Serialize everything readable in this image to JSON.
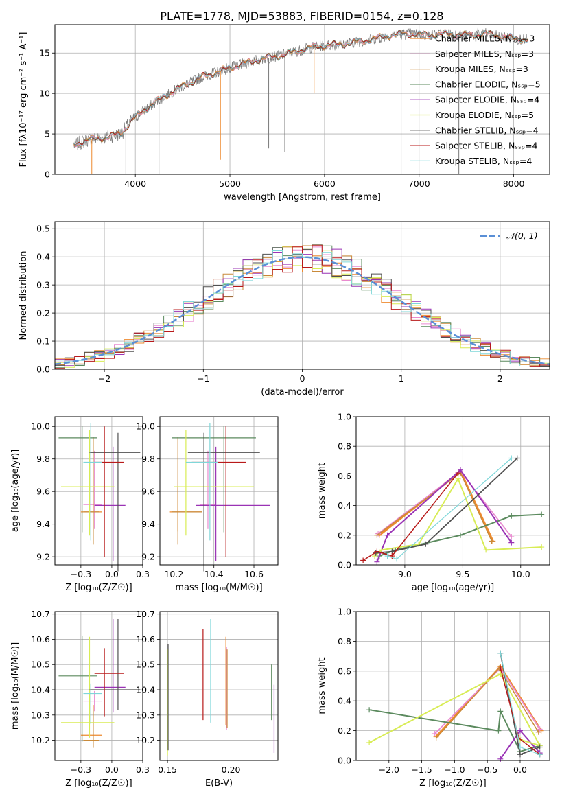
{
  "figure_title": "PLATE=1778, MJD=53883, FIBERID=0154, z=0.128",
  "colors": {
    "chabrier_miles": "#ee8a2e",
    "salpeter_miles": "#e98bd0",
    "kroupa_miles": "#c98a3a",
    "chabrier_elodie": "#5b8a5e",
    "salpeter_elodie": "#9a33b5",
    "kroupa_elodie": "#d8ec55",
    "chabrier_stelib": "#505050",
    "salpeter_stelib": "#b81a1a",
    "kroupa_stelib": "#7fd7d9",
    "normal_curve": "#5a8fd6",
    "grid": "#b0b0b0",
    "spectrum_gray": "#7a7a7a"
  },
  "chart_data": [
    {
      "id": "spectrum",
      "type": "line",
      "title": "PLATE=1778, MJD=53883, FIBERID=0154, z=0.128",
      "xlabel": "wavelength [Angstrom, rest frame]",
      "ylabel": "Flux [fλ10⁻¹⁷ erg cm⁻² s⁻¹ A⁻¹]",
      "xlim": [
        3150,
        8380
      ],
      "ylim": [
        0,
        18.5
      ],
      "xticks": [
        4000,
        5000,
        6000,
        7000,
        8000
      ],
      "yticks": [
        0,
        5,
        10,
        15
      ],
      "legend_position": "right",
      "legend": [
        "Chabrier MILES, Nₛₛₚ=3",
        "Salpeter MILES, Nₛₛₚ=3",
        "Kroupa MILES, Nₛₛₚ=3",
        "Chabrier ELODIE, Nₛₛₚ=5",
        "Salpeter ELODIE, Nₛₛₚ=4",
        "Kroupa ELODIE, Nₛₛₚ=5",
        "Chabrier STELIB, Nₛₛₚ=4",
        "Salpeter STELIB, Nₛₛₚ=4",
        "Kroupa STELIB, Nₛₛₚ=4"
      ],
      "continuum": [
        [
          3350,
          3.6
        ],
        [
          3500,
          4.3
        ],
        [
          3700,
          4.6
        ],
        [
          3850,
          5.0
        ],
        [
          3950,
          6.5
        ],
        [
          4100,
          8.0
        ],
        [
          4300,
          9.6
        ],
        [
          4500,
          10.9
        ],
        [
          4700,
          12.0
        ],
        [
          4900,
          12.8
        ],
        [
          5100,
          13.5
        ],
        [
          5300,
          14.2
        ],
        [
          5500,
          14.6
        ],
        [
          5700,
          15.2
        ],
        [
          5900,
          15.8
        ],
        [
          6100,
          16.0
        ],
        [
          6300,
          16.3
        ],
        [
          6500,
          16.7
        ],
        [
          6700,
          17.2
        ],
        [
          6900,
          17.4
        ],
        [
          7100,
          17.2
        ],
        [
          7300,
          17.4
        ],
        [
          7500,
          17.2
        ],
        [
          7700,
          17.4
        ],
        [
          7900,
          17.0
        ],
        [
          8150,
          16.6
        ]
      ],
      "spikes_down": [
        [
          3540,
          0
        ],
        [
          3900,
          0
        ],
        [
          4250,
          0
        ],
        [
          4900,
          1.8
        ],
        [
          5410,
          3.2
        ],
        [
          5580,
          2.8
        ],
        [
          5890,
          10.0
        ],
        [
          6810,
          0
        ],
        [
          7420,
          0
        ]
      ]
    },
    {
      "id": "residuals",
      "type": "histogram",
      "xlabel": "(data-model)/error",
      "ylabel": "Normed distribution",
      "xlim": [
        -2.5,
        2.5
      ],
      "ylim": [
        0,
        0.525
      ],
      "xticks": [
        -2,
        -1,
        0,
        1,
        2
      ],
      "yticks": [
        0.0,
        0.1,
        0.2,
        0.3,
        0.4,
        0.5
      ],
      "legend": [
        "𝒩(0, 1)"
      ],
      "legend_position": "top-right",
      "bin_width": 0.1
    },
    {
      "id": "age_vs_z",
      "type": "errorbar",
      "xlabel": "Z [log₁₀(Z/Z☉)]",
      "ylabel": "age  [log₁₀(age/yr)]",
      "xlim": [
        -0.46,
        0.25
      ],
      "ylim": [
        9.15,
        10.06
      ],
      "xticks": [
        -0.25,
        0.0,
        0.25
      ],
      "yticks": [
        9.2,
        9.4,
        9.6,
        9.8,
        10.0
      ],
      "points": [
        {
          "x": -0.15,
          "xe": [
            0.1,
            0.07
          ],
          "y": 9.475,
          "ye": [
            0.12,
            0.15
          ]
        },
        {
          "x": -0.14,
          "xe": [
            0.09,
            0.06
          ],
          "y": 9.52,
          "ye": [
            0.15,
            0.33
          ]
        },
        {
          "x": -0.15,
          "xe": [
            0.08,
            0.05
          ],
          "y": 9.475,
          "ye": [
            0.2,
            0.46
          ]
        },
        {
          "x": -0.24,
          "xe": [
            0.19,
            0.12
          ],
          "y": 9.93,
          "ye": [
            0.58,
            0.07
          ]
        },
        {
          "x": 0.01,
          "xe": [
            0.15,
            0.1
          ],
          "y": 9.515,
          "ye": [
            0.34,
            0.36
          ]
        },
        {
          "x": -0.18,
          "xe": [
            0.23,
            0.2
          ],
          "y": 9.63,
          "ye": [
            0.3,
            0.35
          ]
        },
        {
          "x": 0.05,
          "xe": [
            0.23,
            0.18
          ],
          "y": 9.84,
          "ye": [
            0.73,
            0.12
          ]
        },
        {
          "x": -0.06,
          "xe": [
            0.08,
            0.16
          ],
          "y": 9.78,
          "ye": [
            0.58,
            0.22
          ]
        },
        {
          "x": -0.17,
          "xe": [
            0.06,
            0.09
          ],
          "y": 9.78,
          "ye": [
            0.48,
            0.24
          ]
        }
      ]
    },
    {
      "id": "age_vs_mass",
      "type": "errorbar",
      "xlabel": "mass [log₁₀(M/M☉)]",
      "xlim": [
        10.13,
        10.72
      ],
      "ylim": [
        9.15,
        10.06
      ],
      "xticks": [
        10.2,
        10.4,
        10.6
      ],
      "yticks": [
        9.2,
        9.4,
        9.6,
        9.8,
        10.0
      ],
      "points": [
        {
          "x": 10.22,
          "xe": [
            0.04,
            0.12
          ],
          "y": 9.475,
          "ye": [
            0.12,
            0.15
          ]
        },
        {
          "x": 10.37,
          "xe": [
            0.04,
            0.04
          ],
          "y": 9.52,
          "ye": [
            0.15,
            0.33
          ]
        },
        {
          "x": 10.22,
          "xe": [
            0.03,
            0.12
          ],
          "y": 9.475,
          "ye": [
            0.2,
            0.46
          ]
        },
        {
          "x": 10.45,
          "xe": [
            0.26,
            0.16
          ],
          "y": 9.93,
          "ye": [
            0.58,
            0.07
          ]
        },
        {
          "x": 10.41,
          "xe": [
            0.1,
            0.27
          ],
          "y": 9.515,
          "ye": [
            0.34,
            0.36
          ]
        },
        {
          "x": 10.26,
          "xe": [
            0.06,
            0.34
          ],
          "y": 9.63,
          "ye": [
            0.3,
            0.35
          ]
        },
        {
          "x": 10.35,
          "xe": [
            0.08,
            0.28
          ],
          "y": 9.84,
          "ye": [
            0.73,
            0.12
          ]
        },
        {
          "x": 10.46,
          "xe": [
            0.17,
            0.1
          ],
          "y": 9.78,
          "ye": [
            0.58,
            0.22
          ]
        },
        {
          "x": 10.38,
          "xe": [
            0.12,
            0.04
          ],
          "y": 9.78,
          "ye": [
            0.48,
            0.24
          ]
        }
      ]
    },
    {
      "id": "weight_vs_age",
      "type": "line",
      "xlabel": "age  [log₁₀(age/yr)]",
      "ylabel": "mass weight",
      "xlim": [
        8.58,
        10.25
      ],
      "ylim": [
        0,
        1
      ],
      "xticks": [
        9.0,
        9.5,
        10.0
      ],
      "yticks": [
        0.0,
        0.2,
        0.4,
        0.6,
        0.8,
        1.0
      ],
      "series": [
        {
          "x": [
            8.78,
            9.48,
            9.76
          ],
          "y": [
            0.2,
            0.63,
            0.16
          ]
        },
        {
          "x": [
            8.77,
            9.48,
            9.92
          ],
          "y": [
            0.21,
            0.63,
            0.19
          ]
        },
        {
          "x": [
            8.76,
            9.48,
            9.75
          ],
          "y": [
            0.2,
            0.62,
            0.16
          ]
        },
        {
          "x": [
            8.78,
            8.92,
            9.48,
            9.92,
            10.18
          ],
          "y": [
            0.06,
            0.1,
            0.2,
            0.33,
            0.34
          ]
        },
        {
          "x": [
            8.76,
            8.85,
            9.48,
            9.92
          ],
          "y": [
            0.02,
            0.2,
            0.64,
            0.15
          ]
        },
        {
          "x": [
            8.74,
            8.8,
            9.12,
            9.46,
            9.7,
            10.18
          ],
          "y": [
            0.06,
            0.1,
            0.14,
            0.58,
            0.1,
            0.12
          ]
        },
        {
          "x": [
            8.75,
            8.89,
            9.18,
            9.97
          ],
          "y": [
            0.08,
            0.09,
            0.14,
            0.72
          ]
        },
        {
          "x": [
            8.64,
            8.76,
            8.89,
            9.46
          ],
          "y": [
            0.03,
            0.09,
            0.06,
            0.62
          ]
        },
        {
          "x": [
            8.85,
            8.93,
            9.92
          ],
          "y": [
            0.06,
            0.04,
            0.72
          ]
        }
      ]
    },
    {
      "id": "mass_vs_z",
      "type": "errorbar",
      "xlabel": "Z [log₁₀(Z/Z☉)]",
      "ylabel": "mass [log₁₀(M/M☉)]",
      "xlim": [
        -0.46,
        0.25
      ],
      "ylim": [
        10.12,
        10.71
      ],
      "xticks": [
        -0.25,
        0.0,
        0.25
      ],
      "yticks": [
        10.2,
        10.3,
        10.4,
        10.5,
        10.6,
        10.7
      ],
      "points": [
        {
          "x": -0.15,
          "xe": [
            0.1,
            0.07
          ],
          "y": 10.22,
          "ye": [
            0.04,
            0.12
          ]
        },
        {
          "x": -0.14,
          "xe": [
            0.09,
            0.06
          ],
          "y": 10.355,
          "ye": [
            0.04,
            0.04
          ]
        },
        {
          "x": -0.15,
          "xe": [
            0.08,
            0.05
          ],
          "y": 10.2,
          "ye": [
            0.03,
            0.12
          ]
        },
        {
          "x": -0.24,
          "xe": [
            0.19,
            0.12
          ],
          "y": 10.455,
          "ye": [
            0.26,
            0.16
          ]
        },
        {
          "x": 0.01,
          "xe": [
            0.15,
            0.1
          ],
          "y": 10.41,
          "ye": [
            0.1,
            0.27
          ]
        },
        {
          "x": -0.18,
          "xe": [
            0.23,
            0.2
          ],
          "y": 10.27,
          "ye": [
            0.06,
            0.34
          ]
        },
        {
          "x": 0.05,
          "xe": [
            0.23,
            0.18
          ],
          "y": 10.4,
          "ye": [
            0.08,
            0.28
          ]
        },
        {
          "x": -0.06,
          "xe": [
            0.08,
            0.16
          ],
          "y": 10.465,
          "ye": [
            0.17,
            0.1
          ]
        },
        {
          "x": -0.17,
          "xe": [
            0.06,
            0.09
          ],
          "y": 10.385,
          "ye": [
            0.12,
            0.04
          ]
        }
      ]
    },
    {
      "id": "mass_vs_ebv",
      "type": "errorbar",
      "xlabel": "E(B-V)",
      "xlim": [
        0.144,
        0.237
      ],
      "ylim": [
        10.12,
        10.71
      ],
      "xticks": [
        0.15,
        0.2
      ],
      "yticks": [
        10.2,
        10.3,
        10.4,
        10.5,
        10.6,
        10.7
      ],
      "vlines": [
        {
          "x": 0.15,
          "y0": 10.14,
          "y1": 10.56
        },
        {
          "x": 0.1505,
          "y0": 10.16,
          "y1": 10.58
        },
        {
          "x": 0.178,
          "y0": 10.28,
          "y1": 10.64
        },
        {
          "x": 0.184,
          "y0": 10.27,
          "y1": 10.68
        },
        {
          "x": 0.196,
          "y0": 10.26,
          "y1": 10.61
        },
        {
          "x": 0.1965,
          "y0": 10.24,
          "y1": 10.57
        },
        {
          "x": 0.197,
          "y0": 10.25,
          "y1": 10.56
        },
        {
          "x": 0.232,
          "y0": 10.28,
          "y1": 10.5
        },
        {
          "x": 0.234,
          "y0": 10.15,
          "y1": 10.42
        }
      ]
    },
    {
      "id": "weight_vs_z",
      "type": "line",
      "xlabel": "Z [log₁₀(Z/Z☉)]",
      "ylabel": "mass weight",
      "xlim": [
        -2.5,
        0.45
      ],
      "ylim": [
        0,
        1
      ],
      "xticks": [
        -2.0,
        -1.5,
        -1.0,
        -0.5,
        0.0
      ],
      "yticks": [
        0.0,
        0.2,
        0.4,
        0.6,
        0.8,
        1.0
      ],
      "series": [
        {
          "x": [
            -1.28,
            -0.3,
            0.32
          ],
          "y": [
            0.16,
            0.63,
            0.2
          ]
        },
        {
          "x": [
            -1.3,
            -0.3,
            0.3
          ],
          "y": [
            0.18,
            0.62,
            0.21
          ]
        },
        {
          "x": [
            -1.28,
            -0.32,
            0.28
          ],
          "y": [
            0.15,
            0.62,
            0.19
          ]
        },
        {
          "x": [
            -2.3,
            -0.33,
            -0.3,
            0.0,
            0.3
          ],
          "y": [
            0.34,
            0.2,
            0.33,
            0.06,
            0.1
          ]
        },
        {
          "x": [
            -0.3,
            0.0,
            0.3
          ],
          "y": [
            0.01,
            0.2,
            0.05
          ]
        },
        {
          "x": [
            -2.3,
            -0.3,
            0.3,
            0.0
          ],
          "y": [
            0.12,
            0.58,
            0.1,
            0.14
          ]
        },
        {
          "x": [
            -0.3,
            0.0,
            0.3
          ],
          "y": [
            0.72,
            0.04,
            0.09
          ]
        },
        {
          "x": [
            -0.3,
            -0.02,
            0.3
          ],
          "y": [
            0.62,
            0.15,
            0.04
          ]
        },
        {
          "x": [
            -0.3,
            0.0,
            0.3
          ],
          "y": [
            0.72,
            0.09,
            0.04
          ]
        }
      ]
    }
  ]
}
